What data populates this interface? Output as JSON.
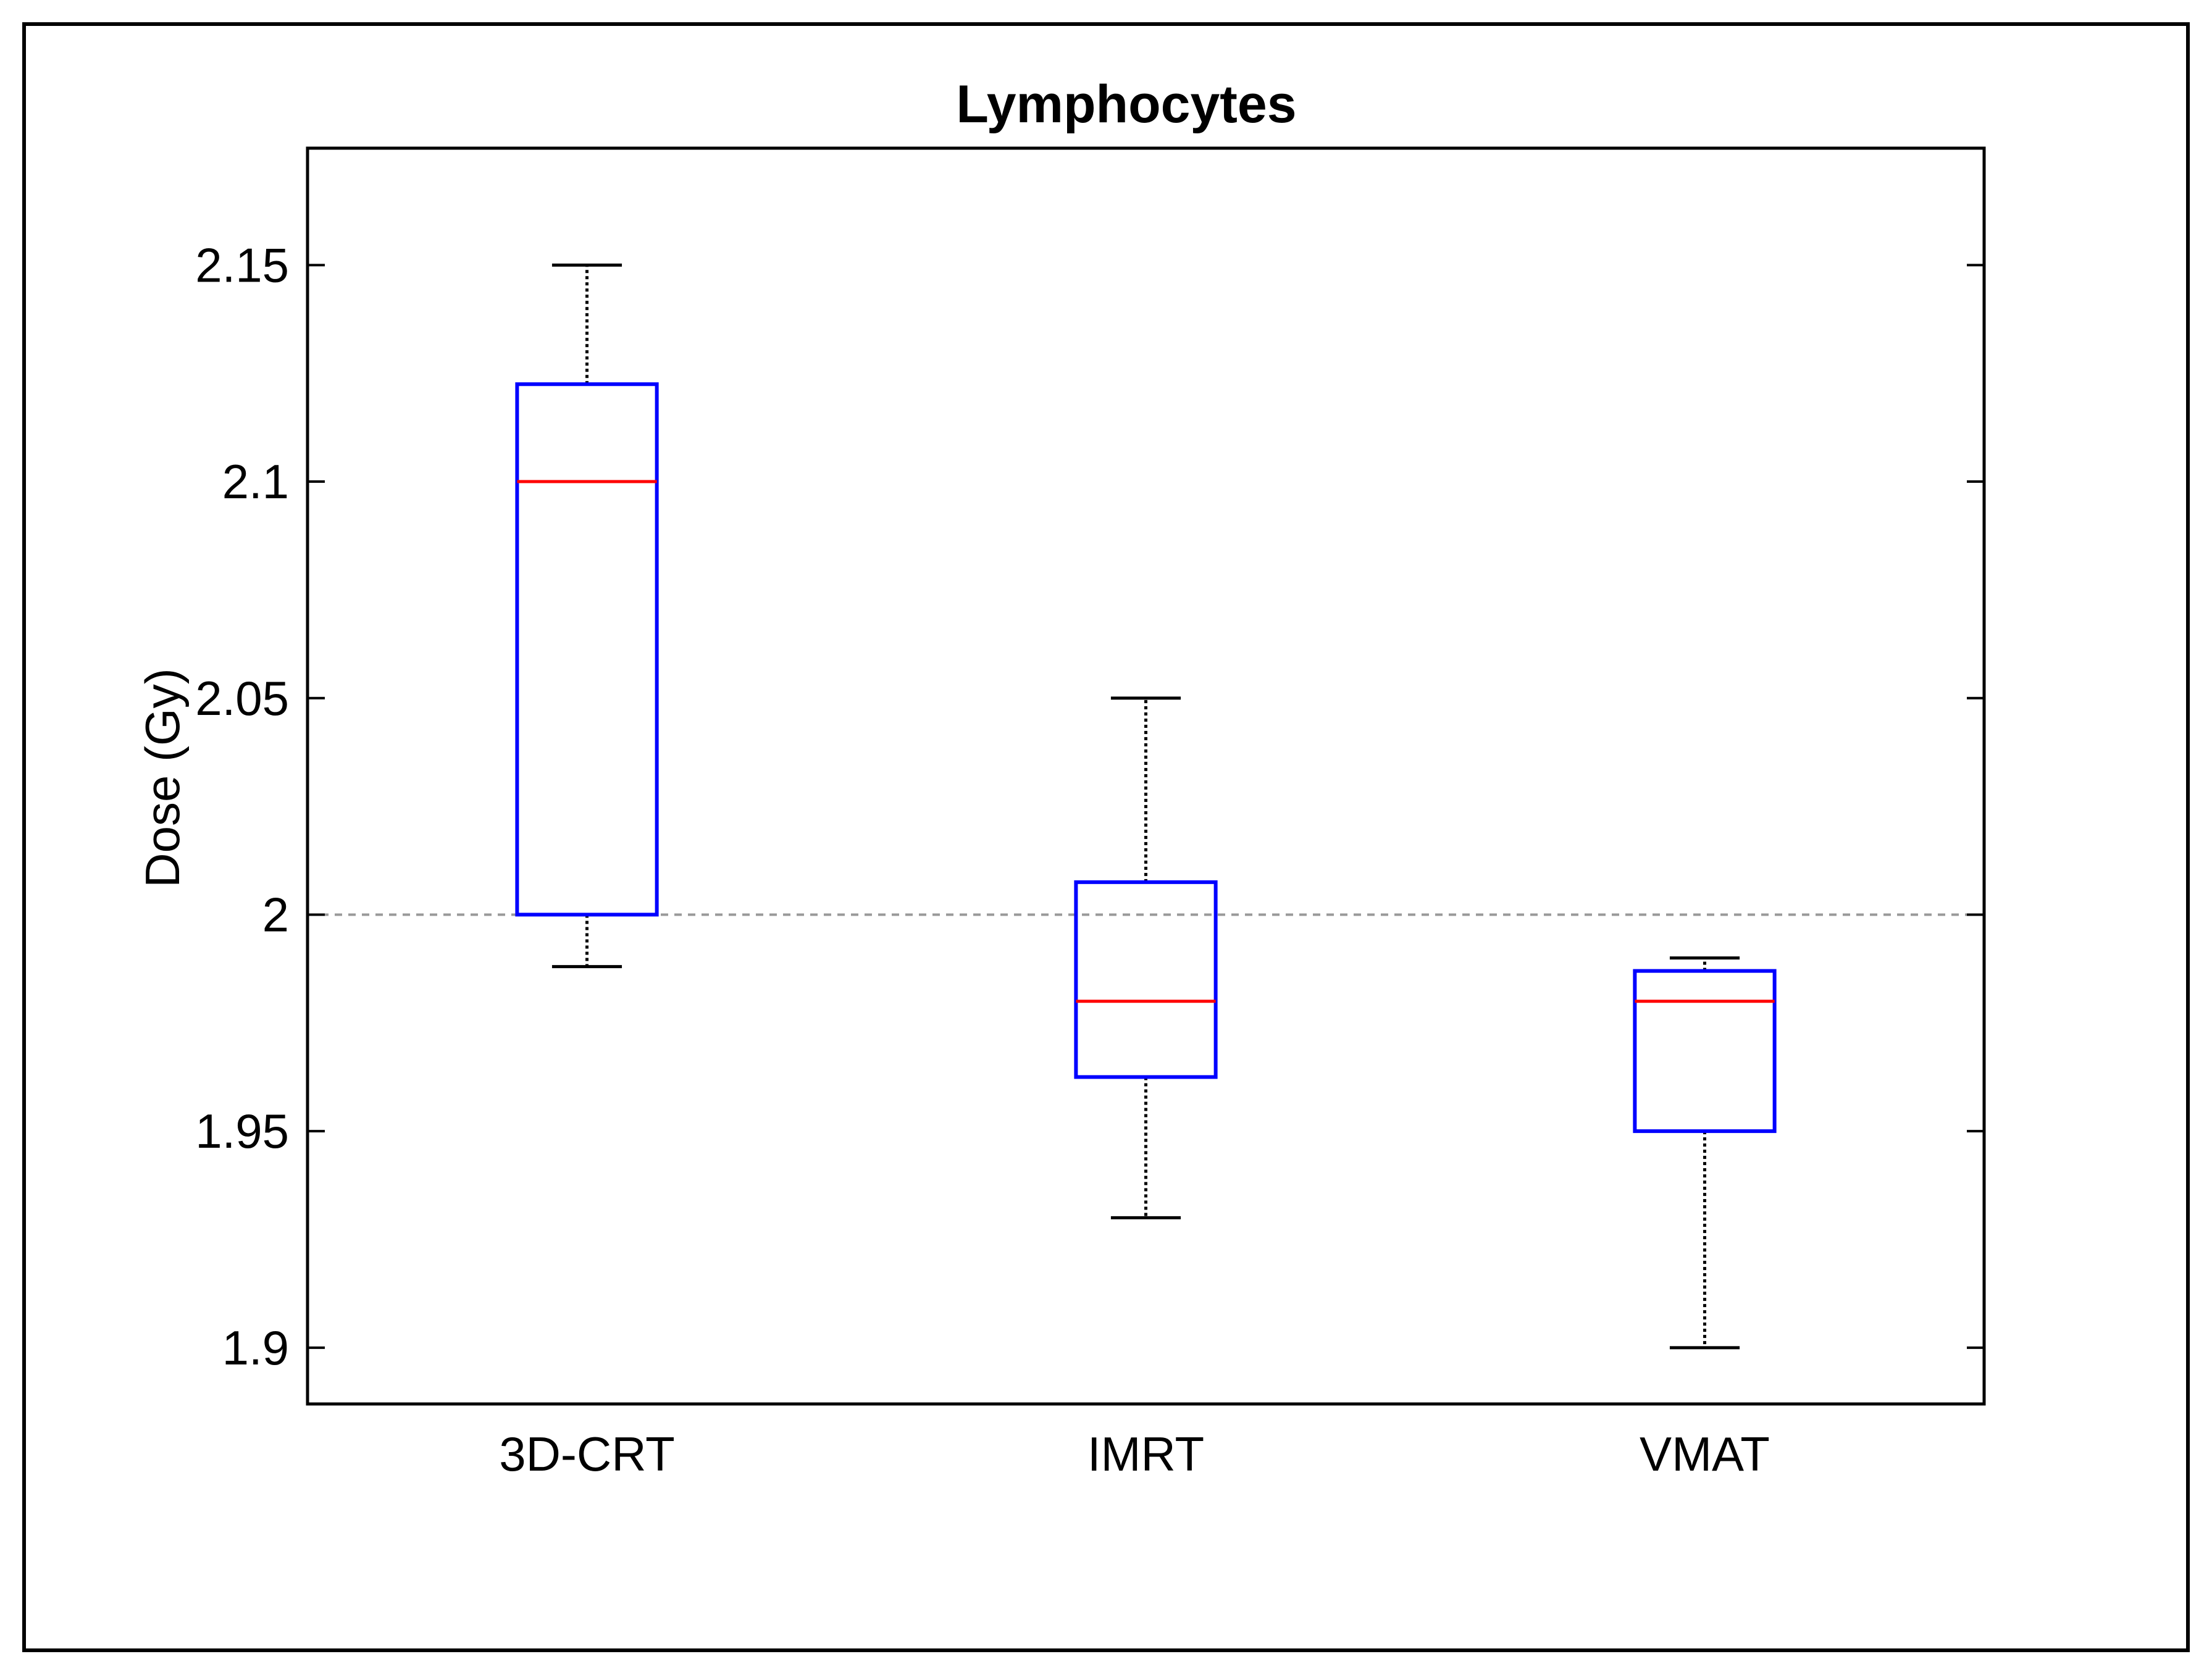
{
  "chart_data": {
    "type": "boxplot",
    "title": "Lymphocytes",
    "xlabel": "",
    "ylabel": "Dose (Gy)",
    "ylim": [
      1.887,
      2.177
    ],
    "yticks": [
      1.9,
      1.95,
      2,
      2.05,
      2.1,
      2.15
    ],
    "ytick_labels": [
      "1.9",
      "1.95",
      "2",
      "2.05",
      "2.1",
      "2.15"
    ],
    "categories": [
      "3D-CRT",
      "IMRT",
      "VMAT"
    ],
    "reference_line": 2.0,
    "series": [
      {
        "name": "3D-CRT",
        "whisker_low": 1.988,
        "q1": 2.0,
        "median": 2.1,
        "q3": 2.1225,
        "whisker_high": 2.15
      },
      {
        "name": "IMRT",
        "whisker_low": 1.93,
        "q1": 1.9625,
        "median": 1.98,
        "q3": 2.0075,
        "whisker_high": 2.05
      },
      {
        "name": "VMAT",
        "whisker_low": 1.9,
        "q1": 1.95,
        "median": 1.98,
        "q3": 1.987,
        "whisker_high": 1.99
      }
    ],
    "colors": {
      "box": "#0000ff",
      "median": "#ff0000",
      "whisker": "#000000",
      "reference": "#999999",
      "axes": "#000000"
    }
  }
}
